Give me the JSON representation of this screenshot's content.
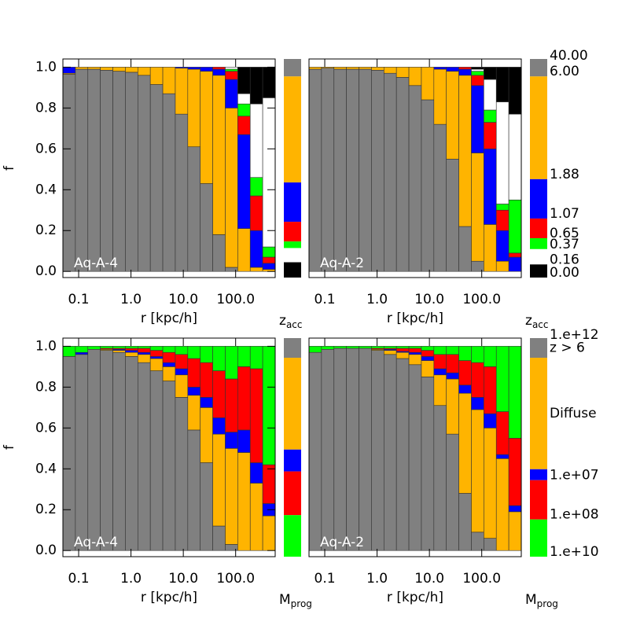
{
  "chart_data": [
    {
      "type": "stacked_bar",
      "label": "Aq-A-4",
      "categories": [
        null,
        null,
        null,
        null,
        null,
        null,
        null,
        null,
        null,
        null,
        null,
        null,
        null,
        null,
        null,
        null,
        null
      ],
      "series": [
        {
          "color": "#808080",
          "values": [
            0.965,
            0.99,
            0.99,
            0.985,
            0.98,
            0.975,
            0.96,
            0.915,
            0.87,
            0.77,
            0.61,
            0.43,
            0.18,
            0.02,
            0,
            0,
            0
          ],
          "total": 0.08
        },
        {
          "color": "#ffb400",
          "values": [
            0.005,
            0.01,
            0.01,
            0.015,
            0.02,
            0.025,
            0.04,
            0.085,
            0.13,
            0.225,
            0.38,
            0.55,
            0.78,
            0.78,
            0.21,
            0.02,
            0.01
          ],
          "total": 0.485
        },
        {
          "color": "#0000ff",
          "values": [
            0.03,
            0,
            0,
            0,
            0,
            0,
            0,
            0,
            0,
            0.005,
            0.01,
            0.02,
            0.03,
            0.14,
            0.46,
            0.18,
            0.03
          ],
          "total": 0.18
        },
        {
          "color": "#ff0000",
          "values": [
            0,
            0,
            0,
            0,
            0,
            0,
            0,
            0,
            0,
            0,
            0,
            0,
            0.01,
            0.04,
            0.09,
            0.17,
            0.03
          ],
          "total": 0.09
        },
        {
          "color": "#00ff00",
          "values": [
            0,
            0,
            0,
            0,
            0,
            0,
            0,
            0,
            0,
            0,
            0,
            0,
            0,
            0.01,
            0.06,
            0.09,
            0.05
          ],
          "total": 0.03
        },
        {
          "color": "#ffffff",
          "values": [
            0,
            0,
            0,
            0,
            0,
            0,
            0,
            0,
            0,
            0,
            0,
            0,
            0,
            0.01,
            0.05,
            0.36,
            0.73
          ],
          "total": 0.065
        },
        {
          "color": "#000000",
          "values": [
            0,
            0,
            0,
            0,
            0,
            0,
            0,
            0,
            0,
            0,
            0,
            0,
            0,
            0,
            0.13,
            0.18,
            0.15
          ],
          "total": 0.07
        }
      ],
      "xscale": "log",
      "xlim": [
        0.05,
        570
      ],
      "xticks": [
        0.1,
        {
          "value": 1,
          "label": "1.0"
        },
        {
          "value": 10,
          "label": "10.0"
        },
        {
          "value": 100,
          "label": "100.0"
        }
      ],
      "xlabel": "r [kpc/h]",
      "ylim": [
        -0.03,
        1.04
      ],
      "yticks": [
        {
          "value": 0,
          "label": "0.0"
        },
        0.2,
        0.4,
        0.6,
        0.8,
        {
          "value": 1,
          "label": "1.0"
        }
      ],
      "ylabel": "f",
      "colorbar_title": {
        "main": "z",
        "sub": "acc"
      }
    },
    {
      "type": "stacked_bar",
      "label": "Aq-A-2",
      "categories": [
        null,
        null,
        null,
        null,
        null,
        null,
        null,
        null,
        null,
        null,
        null,
        null,
        null,
        null,
        null,
        null,
        null
      ],
      "series": [
        {
          "name": "6.00",
          "color": "#808080",
          "values": [
            0.99,
            0.995,
            0.99,
            0.99,
            0.99,
            0.985,
            0.97,
            0.95,
            0.91,
            0.84,
            0.72,
            0.55,
            0.22,
            0.05,
            0,
            0,
            0
          ],
          "total": 0.08
        },
        {
          "name": "1.88",
          "color": "#ffb400",
          "values": [
            0.01,
            0.005,
            0.01,
            0.01,
            0.01,
            0.015,
            0.03,
            0.05,
            0.09,
            0.16,
            0.27,
            0.43,
            0.74,
            0.53,
            0.23,
            0.05,
            0
          ],
          "total": 0.47
        },
        {
          "name": "1.07",
          "color": "#0000ff",
          "values": [
            0,
            0,
            0,
            0,
            0,
            0,
            0,
            0,
            0,
            0,
            0.01,
            0.02,
            0.03,
            0.33,
            0.37,
            0.15,
            0.07
          ],
          "total": 0.18
        },
        {
          "name": "0.65",
          "color": "#ff0000",
          "values": [
            0,
            0,
            0,
            0,
            0,
            0,
            0,
            0,
            0,
            0,
            0,
            0,
            0.01,
            0.05,
            0.13,
            0.1,
            0.02
          ],
          "total": 0.09
        },
        {
          "name": "0.37",
          "color": "#00ff00",
          "values": [
            0,
            0,
            0,
            0,
            0,
            0,
            0,
            0,
            0,
            0,
            0,
            0,
            0,
            0.02,
            0.06,
            0.03,
            0.26
          ],
          "total": 0.05
        },
        {
          "name": "0.16",
          "color": "#ffffff",
          "values": [
            0,
            0,
            0,
            0,
            0,
            0,
            0,
            0,
            0,
            0,
            0,
            0,
            0,
            0.01,
            0.15,
            0.5,
            0.42
          ],
          "total": 0.07
        },
        {
          "name": "0.00",
          "color": "#000000",
          "values": [
            0,
            0,
            0,
            0,
            0,
            0,
            0,
            0,
            0,
            0,
            0,
            0,
            0,
            0.01,
            0.06,
            0.17,
            0.23
          ],
          "total": 0.06
        }
      ],
      "xscale": "log",
      "xlim": [
        0.05,
        570
      ],
      "xticks": [
        0.1,
        {
          "value": 1,
          "label": "1.0"
        },
        {
          "value": 10,
          "label": "10.0"
        },
        {
          "value": 100,
          "label": "100.0"
        }
      ],
      "xlabel": "r [kpc/h]",
      "ylim": [
        -0.03,
        1.04
      ],
      "colorbar_title": {
        "main": "z",
        "sub": "acc"
      },
      "colorbar_top_label": "40.00"
    },
    {
      "type": "stacked_bar",
      "label": "Aq-A-4",
      "categories": [
        null,
        null,
        null,
        null,
        null,
        null,
        null,
        null,
        null,
        null,
        null,
        null,
        null,
        null,
        null,
        null,
        null
      ],
      "series": [
        {
          "color": "#808080",
          "values": [
            0.95,
            0.96,
            0.985,
            0.98,
            0.97,
            0.95,
            0.92,
            0.88,
            0.83,
            0.75,
            0.59,
            0.43,
            0.12,
            0.03,
            0,
            0,
            0
          ],
          "total": 0.09
        },
        {
          "color": "#ffb400",
          "values": [
            0,
            0,
            0,
            0.005,
            0.01,
            0.02,
            0.04,
            0.06,
            0.07,
            0.11,
            0.17,
            0.27,
            0.45,
            0.47,
            0.48,
            0.33,
            0.17
          ],
          "total": 0.42
        },
        {
          "color": "#0000ff",
          "values": [
            0,
            0.01,
            0,
            0,
            0.005,
            0.01,
            0.01,
            0.01,
            0.02,
            0.03,
            0.04,
            0.05,
            0.08,
            0.08,
            0.11,
            0.1,
            0.06
          ],
          "total": 0.1
        },
        {
          "color": "#ff0000",
          "values": [
            0,
            0,
            0,
            0.005,
            0.005,
            0.01,
            0.02,
            0.03,
            0.05,
            0.07,
            0.14,
            0.17,
            0.23,
            0.26,
            0.31,
            0.46,
            0.19
          ],
          "total": 0.2
        },
        {
          "color": "#00ff00",
          "values": [
            0.05,
            0.03,
            0.015,
            0.01,
            0.01,
            0.01,
            0.01,
            0.02,
            0.03,
            0.04,
            0.06,
            0.08,
            0.12,
            0.16,
            0.1,
            0.11,
            0.58
          ],
          "total": 0.19
        }
      ],
      "xscale": "log",
      "xlim": [
        0.05,
        570
      ],
      "xticks": [
        0.1,
        {
          "value": 1,
          "label": "1.0"
        },
        {
          "value": 10,
          "label": "10.0"
        },
        {
          "value": 100,
          "label": "100.0"
        }
      ],
      "xlabel": "r [kpc/h]",
      "ylim": [
        -0.03,
        1.04
      ],
      "yticks": [
        {
          "value": 0,
          "label": "0.0"
        },
        0.2,
        0.4,
        0.6,
        0.8,
        {
          "value": 1,
          "label": "1.0"
        }
      ],
      "ylabel": "f",
      "colorbar_title": {
        "main": "M",
        "sub": "prog"
      }
    },
    {
      "type": "stacked_bar",
      "label": "Aq-A-2",
      "categories": [
        null,
        null,
        null,
        null,
        null,
        null,
        null,
        null,
        null,
        null,
        null,
        null,
        null,
        null,
        null,
        null,
        null
      ],
      "series": [
        {
          "name": "z > 6",
          "color": "#808080",
          "values": [
            0.97,
            0.985,
            0.99,
            0.99,
            0.99,
            0.98,
            0.96,
            0.94,
            0.91,
            0.85,
            0.71,
            0.57,
            0.28,
            0.09,
            0.06,
            0,
            0
          ],
          "total": 0.09
        },
        {
          "name": "Diffuse",
          "color": "#ffb400",
          "values": [
            0,
            0,
            0,
            0,
            0,
            0.005,
            0.02,
            0.03,
            0.05,
            0.08,
            0.15,
            0.27,
            0.49,
            0.6,
            0.54,
            0.45,
            0.19
          ],
          "total": 0.51
        },
        {
          "name": "1.e+07",
          "color": "#0000ff",
          "values": [
            0,
            0,
            0,
            0,
            0,
            0,
            0.005,
            0.005,
            0.01,
            0.02,
            0.03,
            0.03,
            0.04,
            0.06,
            0.07,
            0.02,
            0.03
          ],
          "total": 0.05
        },
        {
          "name": "1.e+08",
          "color": "#ff0000",
          "values": [
            0,
            0,
            0,
            0,
            0,
            0.005,
            0.005,
            0.015,
            0.02,
            0.03,
            0.07,
            0.09,
            0.12,
            0.17,
            0.23,
            0.21,
            0.33
          ],
          "total": 0.18
        },
        {
          "name": "1.e+10",
          "color": "#00ff00",
          "values": [
            0.03,
            0.015,
            0.01,
            0.01,
            0.01,
            0.01,
            0.01,
            0.01,
            0.01,
            0.02,
            0.04,
            0.04,
            0.07,
            0.08,
            0.1,
            0.32,
            0.45
          ],
          "total": 0.17
        }
      ],
      "xscale": "log",
      "xlim": [
        0.05,
        570
      ],
      "xticks": [
        0.1,
        {
          "value": 1,
          "label": "1.0"
        },
        {
          "value": 10,
          "label": "10.0"
        },
        {
          "value": 100,
          "label": "100.0"
        }
      ],
      "xlabel": "r [kpc/h]",
      "ylim": [
        -0.03,
        1.04
      ],
      "colorbar_title": {
        "main": "M",
        "sub": "prog"
      },
      "colorbar_top_label": "1.e+12"
    }
  ]
}
